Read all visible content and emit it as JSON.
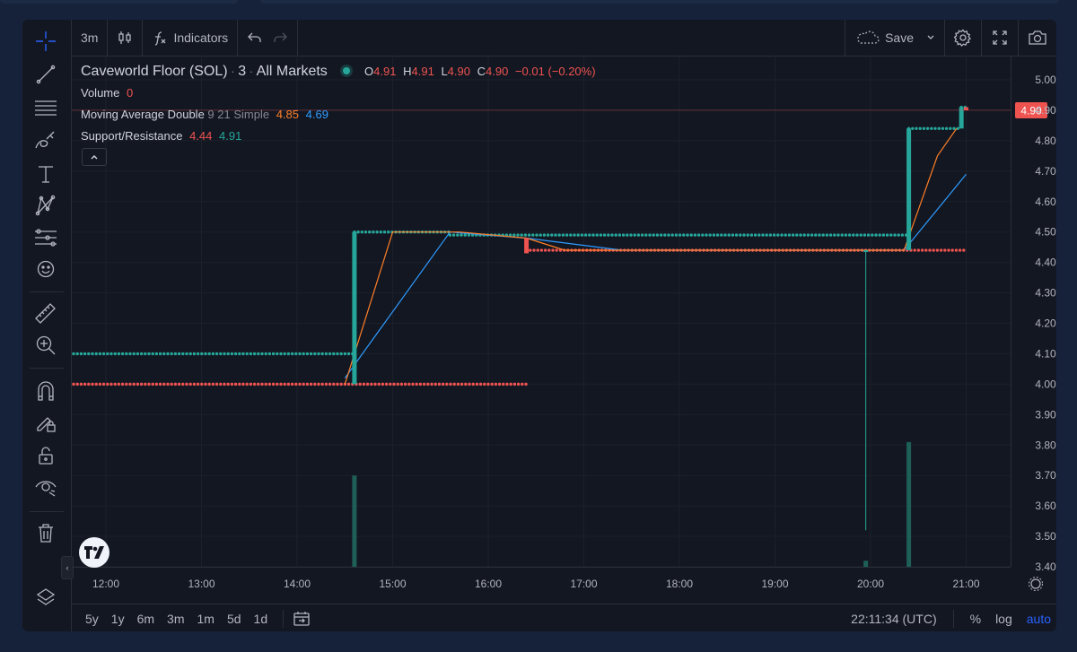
{
  "toolbar": {
    "interval": "3m",
    "indicators_label": "Indicators",
    "save_label": "Save"
  },
  "legend": {
    "symbol": "Caveworld Floor (SOL)",
    "interval": "3",
    "exchange": "All Markets",
    "o_label": "O",
    "o_value": "4.91",
    "h_label": "H",
    "h_value": "4.91",
    "l_label": "L",
    "l_value": "4.90",
    "c_label": "C",
    "c_value": "4.90",
    "change": "−0.01 (−0.20%)",
    "volume_label": "Volume",
    "volume_value": "0",
    "ma_label": "Moving Average Double",
    "ma_params": "9 21 Simple",
    "ma_fast_value": "4.85",
    "ma_slow_value": "4.69",
    "sr_label": "Support/Resistance",
    "sr_support_value": "4.44",
    "sr_resistance_value": "4.91"
  },
  "bottom": {
    "ranges": [
      "5y",
      "1y",
      "6m",
      "3m",
      "1m",
      "5d",
      "1d"
    ],
    "clock": "22:11:34 (UTC)",
    "percent": "%",
    "log": "log",
    "auto": "auto"
  },
  "colors": {
    "up": "#26a69a",
    "down": "#ef5350",
    "ma_fast": "#ff7f27",
    "ma_slow": "#2e9cff",
    "volume": "#1e5f58"
  },
  "icons": [
    "crosshair-icon",
    "trend-line-icon",
    "fib-icon",
    "brush-icon",
    "text-icon",
    "pattern-icon",
    "prediction-icon",
    "emoji-icon",
    "ruler-icon",
    "zoom-in-icon",
    "magnet-icon",
    "lock-draw-icon",
    "lock-icon",
    "eye-icon",
    "trash-icon",
    "layers-icon"
  ],
  "chart_data": {
    "type": "candlestick",
    "x_ticks": [
      "12:00",
      "13:00",
      "14:00",
      "15:00",
      "16:00",
      "17:00",
      "18:00",
      "19:00",
      "20:00",
      "21:00"
    ],
    "y_ticks": [
      "5.00",
      "4.90",
      "4.80",
      "4.70",
      "4.60",
      "4.50",
      "4.40",
      "4.30",
      "4.20",
      "4.10",
      "4.00",
      "3.90",
      "3.80",
      "3.70",
      "3.60",
      "3.50",
      "3.40"
    ],
    "ylim": [
      3.4,
      5.0
    ],
    "last_price": "4.90",
    "candles": [
      {
        "time": "14:36",
        "open": 4.0,
        "high": 4.5,
        "low": 4.0,
        "close": 4.5
      },
      {
        "time": "16:24",
        "open": 4.48,
        "high": 4.48,
        "low": 4.43,
        "close": 4.43
      },
      {
        "time": "19:57",
        "open": 4.44,
        "high": 4.44,
        "low": 3.52,
        "close": 4.44
      },
      {
        "time": "20:24",
        "open": 4.44,
        "high": 4.84,
        "low": 4.44,
        "close": 4.84
      },
      {
        "time": "20:57",
        "open": 4.84,
        "high": 4.91,
        "low": 4.84,
        "close": 4.91
      },
      {
        "time": "21:00",
        "open": 4.91,
        "high": 4.91,
        "low": 4.9,
        "close": 4.9
      }
    ],
    "volume": [
      {
        "time": "14:36",
        "value": 3.7
      },
      {
        "time": "19:57",
        "value": 3.42
      },
      {
        "time": "20:24",
        "value": 3.81
      }
    ],
    "ma_fast": [
      {
        "time": "14:30",
        "value": 4.0
      },
      {
        "time": "15:00",
        "value": 4.5
      },
      {
        "time": "15:42",
        "value": 4.5
      },
      {
        "time": "16:24",
        "value": 4.48
      },
      {
        "time": "16:48",
        "value": 4.44
      },
      {
        "time": "20:21",
        "value": 4.44
      },
      {
        "time": "20:42",
        "value": 4.75
      },
      {
        "time": "20:54",
        "value": 4.84
      }
    ],
    "ma_slow": [
      {
        "time": "14:30",
        "value": 4.02
      },
      {
        "time": "15:36",
        "value": 4.5
      },
      {
        "time": "16:24",
        "value": 4.48
      },
      {
        "time": "17:24",
        "value": 4.44
      },
      {
        "time": "20:21",
        "value": 4.44
      },
      {
        "time": "21:00",
        "value": 4.69
      }
    ],
    "resistance": [
      {
        "from": "11:30",
        "to": "14:36",
        "value": 4.1
      },
      {
        "from": "14:36",
        "to": "15:36",
        "value": 4.5
      },
      {
        "from": "15:36",
        "to": "20:24",
        "value": 4.49
      },
      {
        "from": "20:24",
        "to": "20:57",
        "value": 4.84
      },
      {
        "from": "20:57",
        "to": "21:00",
        "value": 4.91
      }
    ],
    "support": [
      {
        "from": "11:30",
        "to": "16:24",
        "value": 4.0
      },
      {
        "from": "16:24",
        "to": "21:00",
        "value": 4.44
      }
    ]
  }
}
